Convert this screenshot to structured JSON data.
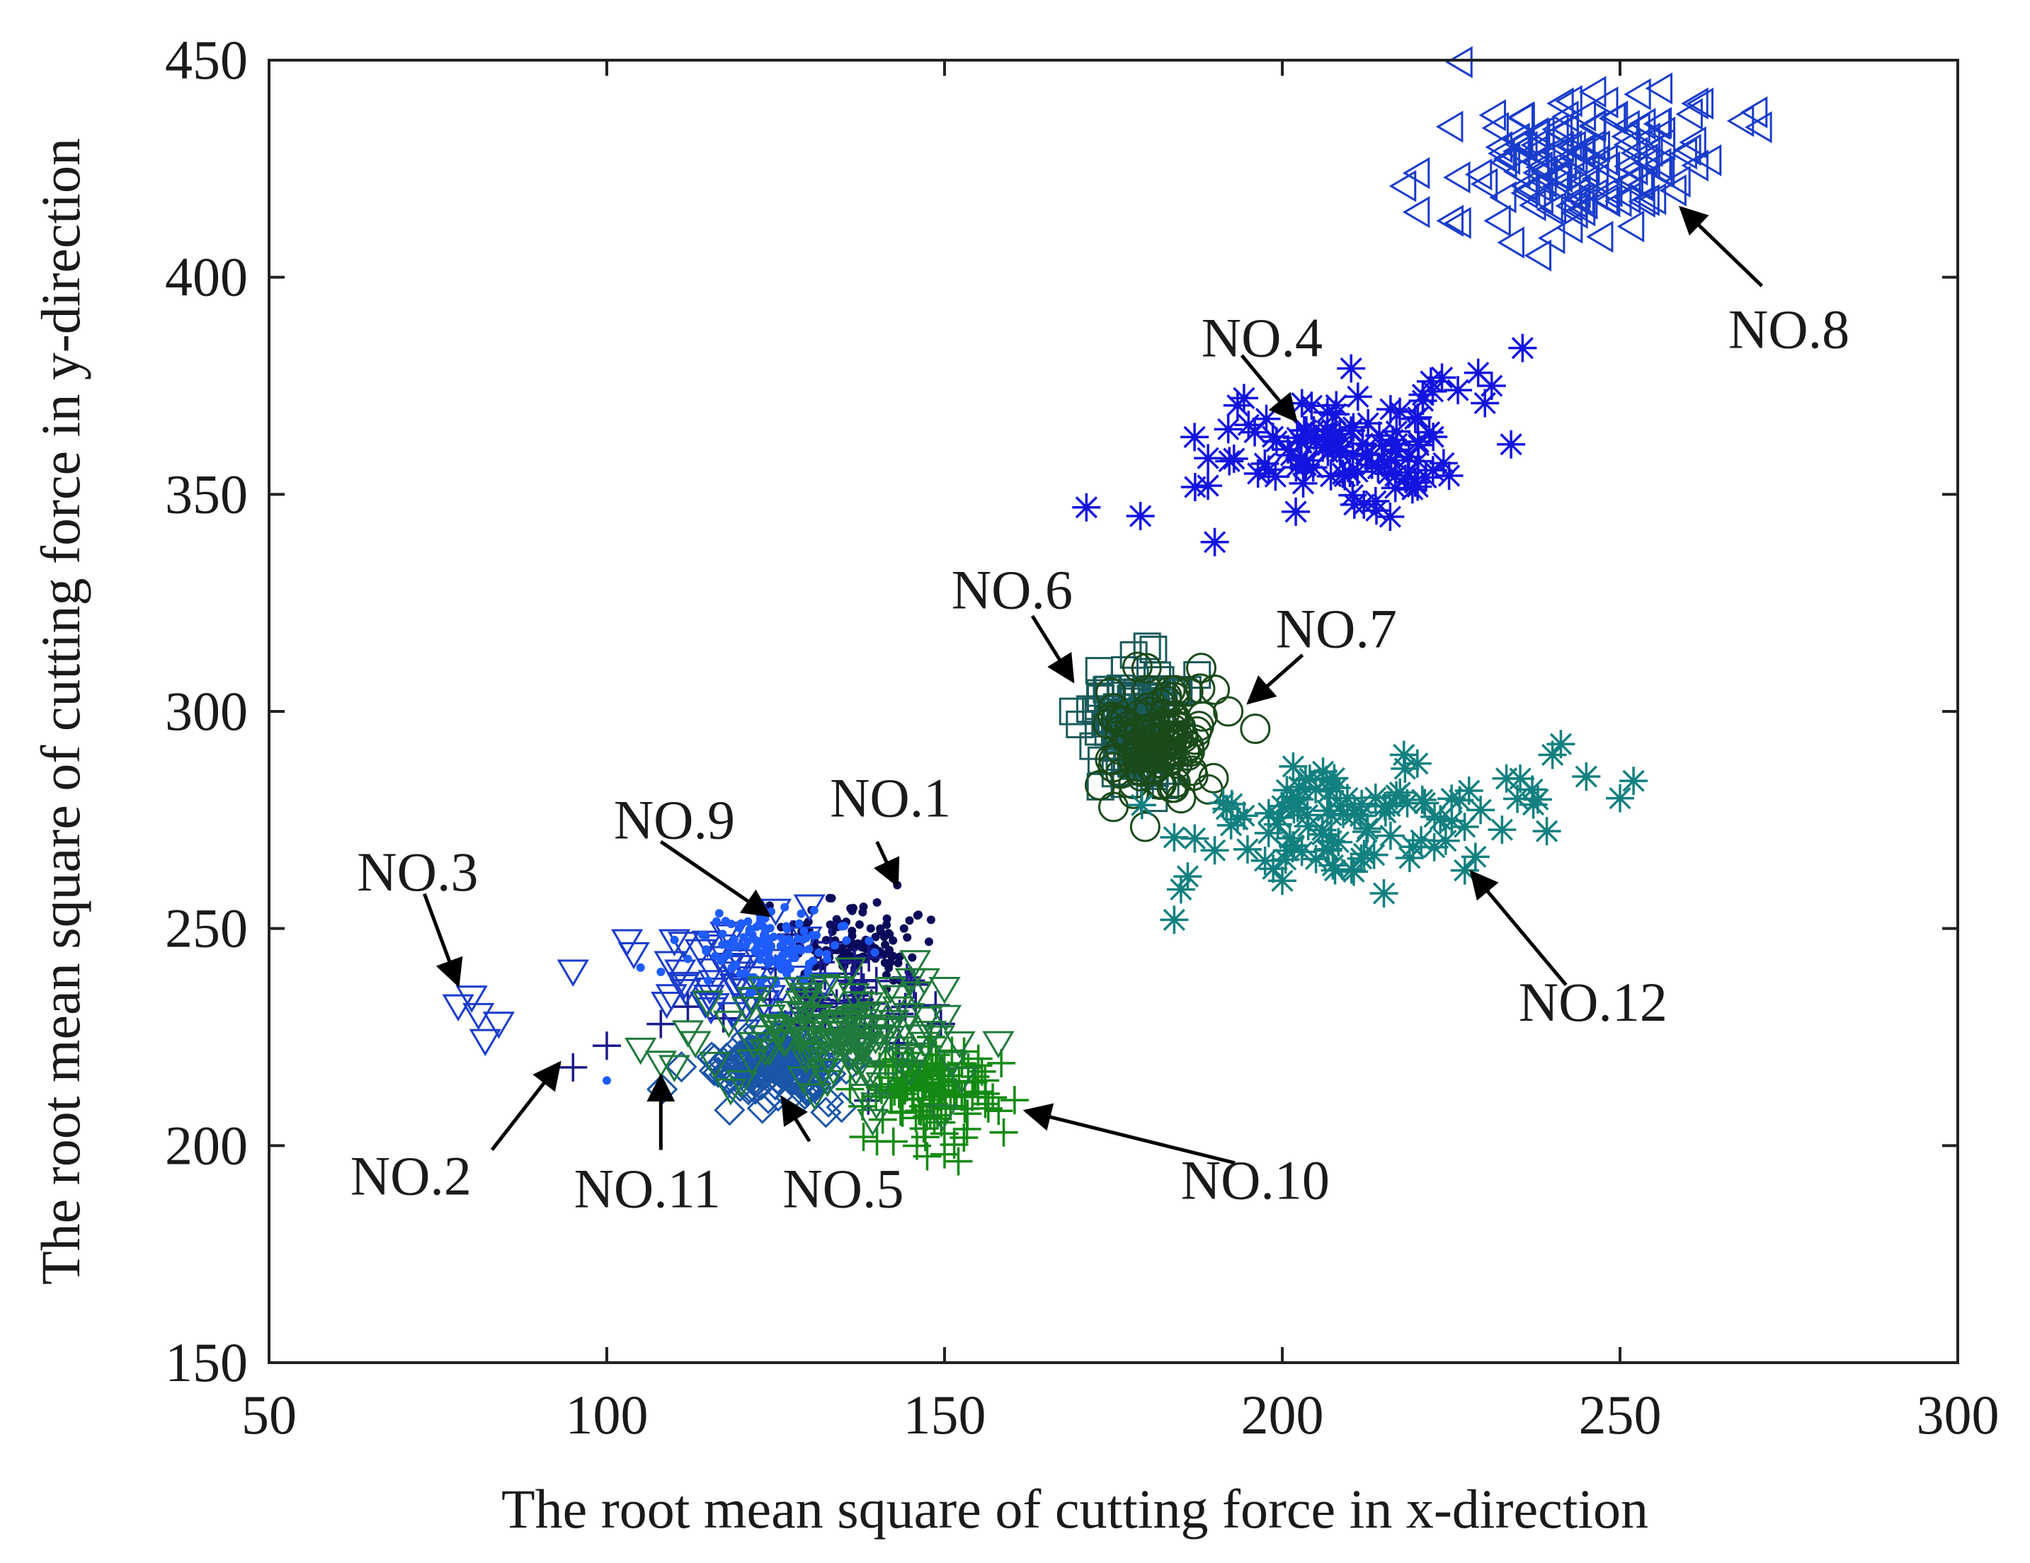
{
  "chart_data": {
    "type": "scatter",
    "title": "",
    "xlabel": "The root mean square of cutting force in x-direction",
    "ylabel": "The root mean square of cutting force in y-direction",
    "xlim": [
      50,
      300
    ],
    "ylim": [
      150,
      450
    ],
    "xticks": [
      50,
      100,
      150,
      200,
      250,
      300
    ],
    "yticks": [
      150,
      200,
      250,
      300,
      350,
      400,
      450
    ],
    "grid": false,
    "series": [
      {
        "name": "NO.1",
        "marker": "dot",
        "color": "#0a0a5a",
        "cluster": {
          "cx": 137,
          "cy": 246,
          "sx": 5,
          "sy": 4,
          "n": 110
        },
        "points": [
          [
            140,
            256
          ],
          [
            143,
            260
          ],
          [
            146,
            253
          ],
          [
            148,
            252
          ],
          [
            144,
            250
          ],
          [
            138,
            255
          ],
          [
            133,
            257
          ],
          [
            141,
            244
          ],
          [
            145,
            240
          ]
        ]
      },
      {
        "name": "NO.2",
        "marker": "plus",
        "color": "#1a1a8c",
        "cluster": {
          "cx": 135,
          "cy": 232,
          "sx": 6,
          "sy": 6,
          "n": 60
        },
        "points": [
          [
            95,
            218
          ],
          [
            100,
            223
          ],
          [
            108,
            228
          ],
          [
            112,
            232
          ],
          [
            145,
            238
          ],
          [
            148,
            225
          ]
        ]
      },
      {
        "name": "NO.3",
        "marker": "tri-down",
        "color": "#1a3ccc",
        "cluster": {
          "cx": 118,
          "cy": 238,
          "sx": 6,
          "sy": 5,
          "n": 45
        },
        "points": [
          [
            78,
            232
          ],
          [
            81,
            230
          ],
          [
            82,
            224
          ],
          [
            84,
            228
          ],
          [
            80,
            234
          ],
          [
            95,
            240
          ],
          [
            103,
            247
          ],
          [
            104,
            244
          ],
          [
            110,
            247
          ],
          [
            125,
            254
          ],
          [
            130,
            255
          ]
        ]
      },
      {
        "name": "NO.4",
        "marker": "asterisk",
        "color": "#1414e0",
        "cluster": {
          "cx": 212,
          "cy": 360,
          "sx": 10,
          "sy": 7,
          "n": 110
        },
        "points": [
          [
            171,
            347
          ],
          [
            179,
            345
          ],
          [
            190,
            339
          ],
          [
            189,
            352
          ],
          [
            192,
            365
          ],
          [
            195,
            366
          ],
          [
            202,
            346
          ],
          [
            222,
            376
          ],
          [
            229,
            378
          ],
          [
            231,
            375
          ],
          [
            230,
            371
          ],
          [
            226,
            374
          ]
        ]
      },
      {
        "name": "NO.5",
        "marker": "diamond",
        "color": "#1a55a8",
        "cluster": {
          "cx": 125,
          "cy": 218,
          "sx": 5,
          "sy": 4,
          "n": 140
        },
        "points": [
          [
            118,
            215
          ],
          [
            130,
            213
          ],
          [
            132,
            224
          ],
          [
            121,
            222
          ]
        ]
      },
      {
        "name": "NO.6",
        "marker": "square",
        "color": "#1a5a5a",
        "cluster": {
          "cx": 178,
          "cy": 297,
          "sx": 3,
          "sy": 6,
          "n": 110
        },
        "points": [
          [
            169,
            300
          ],
          [
            170,
            297
          ],
          [
            178,
            313
          ],
          [
            180,
            315
          ],
          [
            181,
            280
          ],
          [
            174,
            305
          ],
          [
            186,
            305
          ],
          [
            172,
            292
          ]
        ]
      },
      {
        "name": "NO.7",
        "marker": "circle",
        "color": "#1a4a1a",
        "cluster": {
          "cx": 181,
          "cy": 292,
          "sx": 4,
          "sy": 7,
          "n": 110
        },
        "points": [
          [
            188,
            310
          ],
          [
            190,
            305
          ],
          [
            196,
            296
          ],
          [
            185,
            280
          ],
          [
            173,
            283
          ],
          [
            178,
            281
          ],
          [
            192,
            300
          ],
          [
            175,
            278
          ]
        ]
      },
      {
        "name": "NO.8",
        "marker": "tri-left",
        "color": "#1a3ccc",
        "cluster": {
          "cx": 244,
          "cy": 428,
          "sx": 9,
          "sy": 8,
          "n": 130
        },
        "points": [
          [
            220,
            424
          ],
          [
            218,
            421
          ],
          [
            226,
            423
          ],
          [
            220,
            415
          ],
          [
            225,
            413
          ],
          [
            232,
            413
          ],
          [
            234,
            408
          ],
          [
            238,
            405
          ],
          [
            270,
            438
          ],
          [
            268,
            436
          ],
          [
            262,
            440
          ],
          [
            258,
            420
          ],
          [
            255,
            418
          ]
        ]
      },
      {
        "name": "NO.9",
        "marker": "dot",
        "color": "#1f5cff",
        "cluster": {
          "cx": 125,
          "cy": 246,
          "sx": 5,
          "sy": 4,
          "n": 130
        },
        "points": [
          [
            100,
            215
          ],
          [
            105,
            241
          ],
          [
            108,
            240
          ],
          [
            112,
            243
          ],
          [
            118,
            244
          ],
          [
            115,
            238
          ]
        ]
      },
      {
        "name": "NO.10",
        "marker": "plus",
        "color": "#148a14",
        "cluster": {
          "cx": 148,
          "cy": 212,
          "sx": 5,
          "sy": 5,
          "n": 110
        },
        "points": [
          [
            138,
            202
          ],
          [
            140,
            201
          ],
          [
            150,
            198
          ],
          [
            158,
            208
          ],
          [
            156,
            215
          ],
          [
            155,
            220
          ],
          [
            148,
            225
          ],
          [
            136,
            213
          ]
        ]
      },
      {
        "name": "NO.11",
        "marker": "tri-down",
        "color": "#1f7a3c",
        "cluster": {
          "cx": 135,
          "cy": 226,
          "sx": 8,
          "sy": 6,
          "n": 130
        },
        "points": [
          [
            105,
            222
          ],
          [
            108,
            219
          ],
          [
            110,
            218
          ],
          [
            112,
            226
          ],
          [
            147,
            238
          ],
          [
            150,
            236
          ],
          [
            145,
            238
          ],
          [
            142,
            236
          ]
        ]
      },
      {
        "name": "NO.12",
        "marker": "asterisk",
        "color": "#138080",
        "cluster": {
          "cx": 212,
          "cy": 275,
          "sx": 14,
          "sy": 7,
          "n": 100
        },
        "points": [
          [
            184,
            271
          ],
          [
            185,
            259
          ],
          [
            184,
            252
          ],
          [
            186,
            262
          ],
          [
            190,
            268
          ],
          [
            200,
            261
          ],
          [
            218,
            290
          ],
          [
            220,
            288
          ],
          [
            240,
            290
          ],
          [
            245,
            285
          ],
          [
            250,
            280
          ],
          [
            252,
            284
          ],
          [
            237,
            282
          ]
        ]
      }
    ],
    "annotations": [
      {
        "label": "NO.1",
        "text_at": [
          142,
          280
        ],
        "arrow_from": [
          140,
          270
        ],
        "arrow_to": [
          143,
          260
        ]
      },
      {
        "label": "NO.2",
        "text_at": [
          71,
          193
        ],
        "arrow_from": [
          83,
          199
        ],
        "arrow_to": [
          93,
          219
        ]
      },
      {
        "label": "NO.3",
        "text_at": [
          72,
          263
        ],
        "arrow_from": [
          73,
          258
        ],
        "arrow_to": [
          78,
          237
        ]
      },
      {
        "label": "NO.4",
        "text_at": [
          197,
          386
        ],
        "arrow_from": [
          194,
          382
        ],
        "arrow_to": [
          202,
          367
        ]
      },
      {
        "label": "NO.5",
        "text_at": [
          135,
          190
        ],
        "arrow_from": [
          130,
          201
        ],
        "arrow_to": [
          126,
          211
        ]
      },
      {
        "label": "NO.6",
        "text_at": [
          160,
          328
        ],
        "arrow_from": [
          163,
          322
        ],
        "arrow_to": [
          169,
          307
        ]
      },
      {
        "label": "NO.7",
        "text_at": [
          208,
          319
        ],
        "arrow_from": [
          203,
          313
        ],
        "arrow_to": [
          195,
          302
        ]
      },
      {
        "label": "NO.8",
        "text_at": [
          275,
          388
        ],
        "arrow_from": [
          271,
          398
        ],
        "arrow_to": [
          259,
          416
        ]
      },
      {
        "label": "NO.9",
        "text_at": [
          110,
          275
        ],
        "arrow_from": [
          108,
          270
        ],
        "arrow_to": [
          124,
          253
        ]
      },
      {
        "label": "NO.10",
        "text_at": [
          196,
          192
        ],
        "arrow_from": [
          193,
          196
        ],
        "arrow_to": [
          162,
          208
        ]
      },
      {
        "label": "NO.11",
        "text_at": [
          106,
          190
        ],
        "arrow_from": [
          108,
          199
        ],
        "arrow_to": [
          108,
          216
        ]
      },
      {
        "label": "NO.12",
        "text_at": [
          246,
          233
        ],
        "arrow_from": [
          242,
          237
        ],
        "arrow_to": [
          228,
          263
        ]
      }
    ]
  }
}
